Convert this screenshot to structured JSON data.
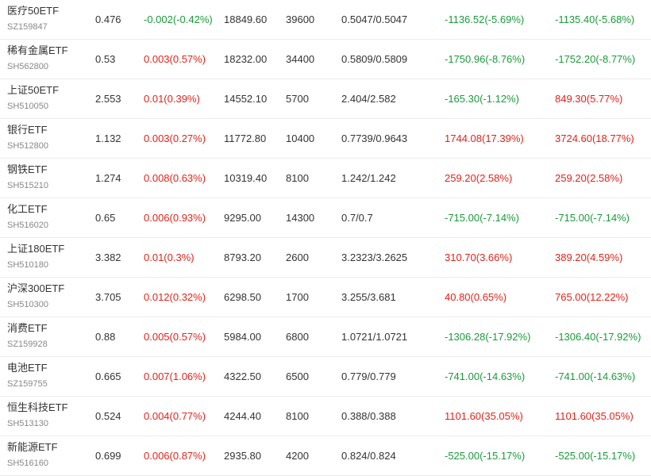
{
  "colors": {
    "up": "#e2231a",
    "down": "#1a9b3a",
    "text": "#333333",
    "code": "#888888"
  },
  "rows": [
    {
      "name": "医疗50ETF",
      "code": "SZ159847",
      "price": "0.476",
      "change": "-0.002(-0.42%)",
      "change_dir": "down",
      "amount": "18849.60",
      "volume": "39600",
      "hl": "0.5047/0.5047",
      "pl1": "-1136.52(-5.69%)",
      "pl1_dir": "down",
      "pl2": "-1135.40(-5.68%)",
      "pl2_dir": "down"
    },
    {
      "name": "稀有金属ETF",
      "code": "SH562800",
      "price": "0.53",
      "change": "0.003(0.57%)",
      "change_dir": "up",
      "amount": "18232.00",
      "volume": "34400",
      "hl": "0.5809/0.5809",
      "pl1": "-1750.96(-8.76%)",
      "pl1_dir": "down",
      "pl2": "-1752.20(-8.77%)",
      "pl2_dir": "down"
    },
    {
      "name": "上证50ETF",
      "code": "SH510050",
      "price": "2.553",
      "change": "0.01(0.39%)",
      "change_dir": "up",
      "amount": "14552.10",
      "volume": "5700",
      "hl": "2.404/2.582",
      "pl1": "-165.30(-1.12%)",
      "pl1_dir": "down",
      "pl2": "849.30(5.77%)",
      "pl2_dir": "up"
    },
    {
      "name": "银行ETF",
      "code": "SH512800",
      "price": "1.132",
      "change": "0.003(0.27%)",
      "change_dir": "up",
      "amount": "11772.80",
      "volume": "10400",
      "hl": "0.7739/0.9643",
      "pl1": "1744.08(17.39%)",
      "pl1_dir": "up",
      "pl2": "3724.60(18.77%)",
      "pl2_dir": "up"
    },
    {
      "name": "钢铁ETF",
      "code": "SH515210",
      "price": "1.274",
      "change": "0.008(0.63%)",
      "change_dir": "up",
      "amount": "10319.40",
      "volume": "8100",
      "hl": "1.242/1.242",
      "pl1": "259.20(2.58%)",
      "pl1_dir": "up",
      "pl2": "259.20(2.58%)",
      "pl2_dir": "up"
    },
    {
      "name": "化工ETF",
      "code": "SH516020",
      "price": "0.65",
      "change": "0.006(0.93%)",
      "change_dir": "up",
      "amount": "9295.00",
      "volume": "14300",
      "hl": "0.7/0.7",
      "pl1": "-715.00(-7.14%)",
      "pl1_dir": "down",
      "pl2": "-715.00(-7.14%)",
      "pl2_dir": "down"
    },
    {
      "name": "上证180ETF",
      "code": "SH510180",
      "price": "3.382",
      "change": "0.01(0.3%)",
      "change_dir": "up",
      "amount": "8793.20",
      "volume": "2600",
      "hl": "3.2323/3.2625",
      "pl1": "310.70(3.66%)",
      "pl1_dir": "up",
      "pl2": "389.20(4.59%)",
      "pl2_dir": "up"
    },
    {
      "name": "沪深300ETF",
      "code": "SH510300",
      "price": "3.705",
      "change": "0.012(0.32%)",
      "change_dir": "up",
      "amount": "6298.50",
      "volume": "1700",
      "hl": "3.255/3.681",
      "pl1": "40.80(0.65%)",
      "pl1_dir": "up",
      "pl2": "765.00(12.22%)",
      "pl2_dir": "up"
    },
    {
      "name": "消费ETF",
      "code": "SZ159928",
      "price": "0.88",
      "change": "0.005(0.57%)",
      "change_dir": "up",
      "amount": "5984.00",
      "volume": "6800",
      "hl": "1.0721/1.0721",
      "pl1": "-1306.28(-17.92%)",
      "pl1_dir": "down",
      "pl2": "-1306.40(-17.92%)",
      "pl2_dir": "down"
    },
    {
      "name": "电池ETF",
      "code": "SZ159755",
      "price": "0.665",
      "change": "0.007(1.06%)",
      "change_dir": "up",
      "amount": "4322.50",
      "volume": "6500",
      "hl": "0.779/0.779",
      "pl1": "-741.00(-14.63%)",
      "pl1_dir": "down",
      "pl2": "-741.00(-14.63%)",
      "pl2_dir": "down"
    },
    {
      "name": "恒生科技ETF",
      "code": "SH513130",
      "price": "0.524",
      "change": "0.004(0.77%)",
      "change_dir": "up",
      "amount": "4244.40",
      "volume": "8100",
      "hl": "0.388/0.388",
      "pl1": "1101.60(35.05%)",
      "pl1_dir": "up",
      "pl2": "1101.60(35.05%)",
      "pl2_dir": "up"
    },
    {
      "name": "新能源ETF",
      "code": "SH516160",
      "price": "0.699",
      "change": "0.006(0.87%)",
      "change_dir": "up",
      "amount": "2935.80",
      "volume": "4200",
      "hl": "0.824/0.824",
      "pl1": "-525.00(-15.17%)",
      "pl1_dir": "down",
      "pl2": "-525.00(-15.17%)",
      "pl2_dir": "down"
    }
  ]
}
